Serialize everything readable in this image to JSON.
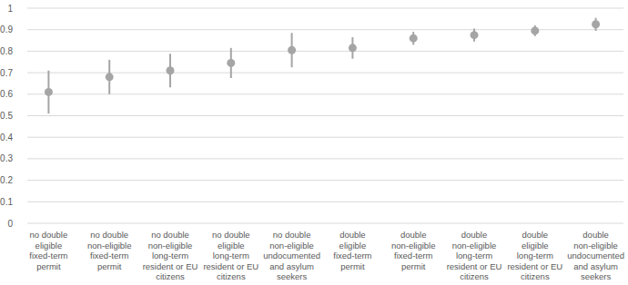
{
  "chart_data": {
    "type": "dot",
    "categories": [
      "no double eligible fixed-term permit",
      "no double non-eligible fixed-term permit",
      "no double non-eligible long-term resident or EU citizens",
      "no double eligible long-term resident or EU citizens",
      "no double non-eligible undocumented and asylum seekers",
      "double eligible fixed-term permit",
      "double non-eligible fixed-term permit",
      "double non-eligible long-term resident or EU citizens",
      "double eligible long-term resident or EU citizens",
      "double non-eligible undocumented and asylum seekers"
    ],
    "values": [
      0.61,
      0.68,
      0.71,
      0.745,
      0.805,
      0.815,
      0.86,
      0.875,
      0.895,
      0.925
    ],
    "errors": [
      0.1,
      0.08,
      0.078,
      0.07,
      0.08,
      0.05,
      0.03,
      0.03,
      0.025,
      0.03
    ],
    "color": "#a5a5a5",
    "ylim": [
      0,
      1
    ],
    "yticks": [
      0,
      0.1,
      0.2,
      0.3,
      0.4,
      0.5,
      0.6,
      0.7,
      0.8,
      0.9,
      1
    ],
    "grid": true
  }
}
